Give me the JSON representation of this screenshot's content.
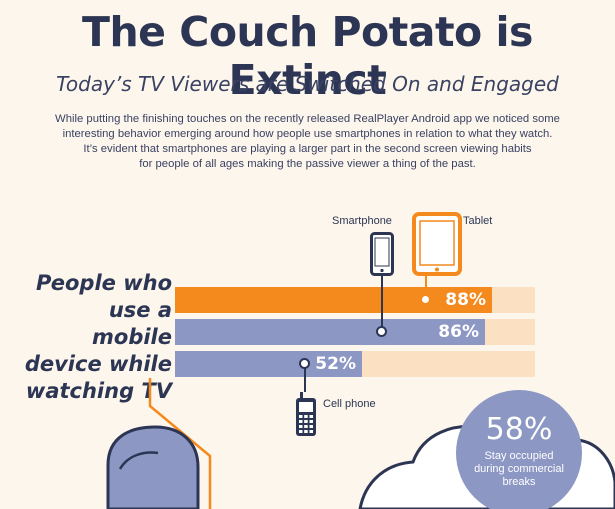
{
  "header": {
    "title": "The Couch Potato is Extinct",
    "subtitle": "Today’s TV Viewers are Switched On and Engaged",
    "intro_lines": [
      "While putting the finishing touches on the recently released RealPlayer Android app we noticed some",
      "interesting behavior emerging around how people use smartphones in relation to what they watch.",
      "It’s evident that smartphones are playing a larger part in the second screen viewing habits",
      "for people of all ages making the passive viewer a thing of the past."
    ]
  },
  "lead_lines": [
    "People who",
    "use a mobile",
    "device while",
    "watching TV"
  ],
  "chart_data": {
    "type": "bar",
    "orientation": "horizontal",
    "categories": [
      "Tablet",
      "Smartphone",
      "Cell phone"
    ],
    "values": [
      88,
      86,
      52
    ],
    "value_labels": [
      "88%",
      "86%",
      "52%"
    ],
    "ylim": [
      0,
      100
    ]
  },
  "devices": {
    "smartphone_label": "Smartphone",
    "tablet_label": "Tablet",
    "cellphone_label": "Cell phone"
  },
  "colors": {
    "tablet": "#f48a1e",
    "smartphone": "#8c97c4",
    "cellphone": "#8c97c4",
    "track": "#fbe1c1",
    "navy": "#2c3553"
  },
  "stat_bubble": {
    "percent": "58%",
    "lines": [
      "Stay occupied",
      "during commercial",
      "breaks"
    ]
  }
}
